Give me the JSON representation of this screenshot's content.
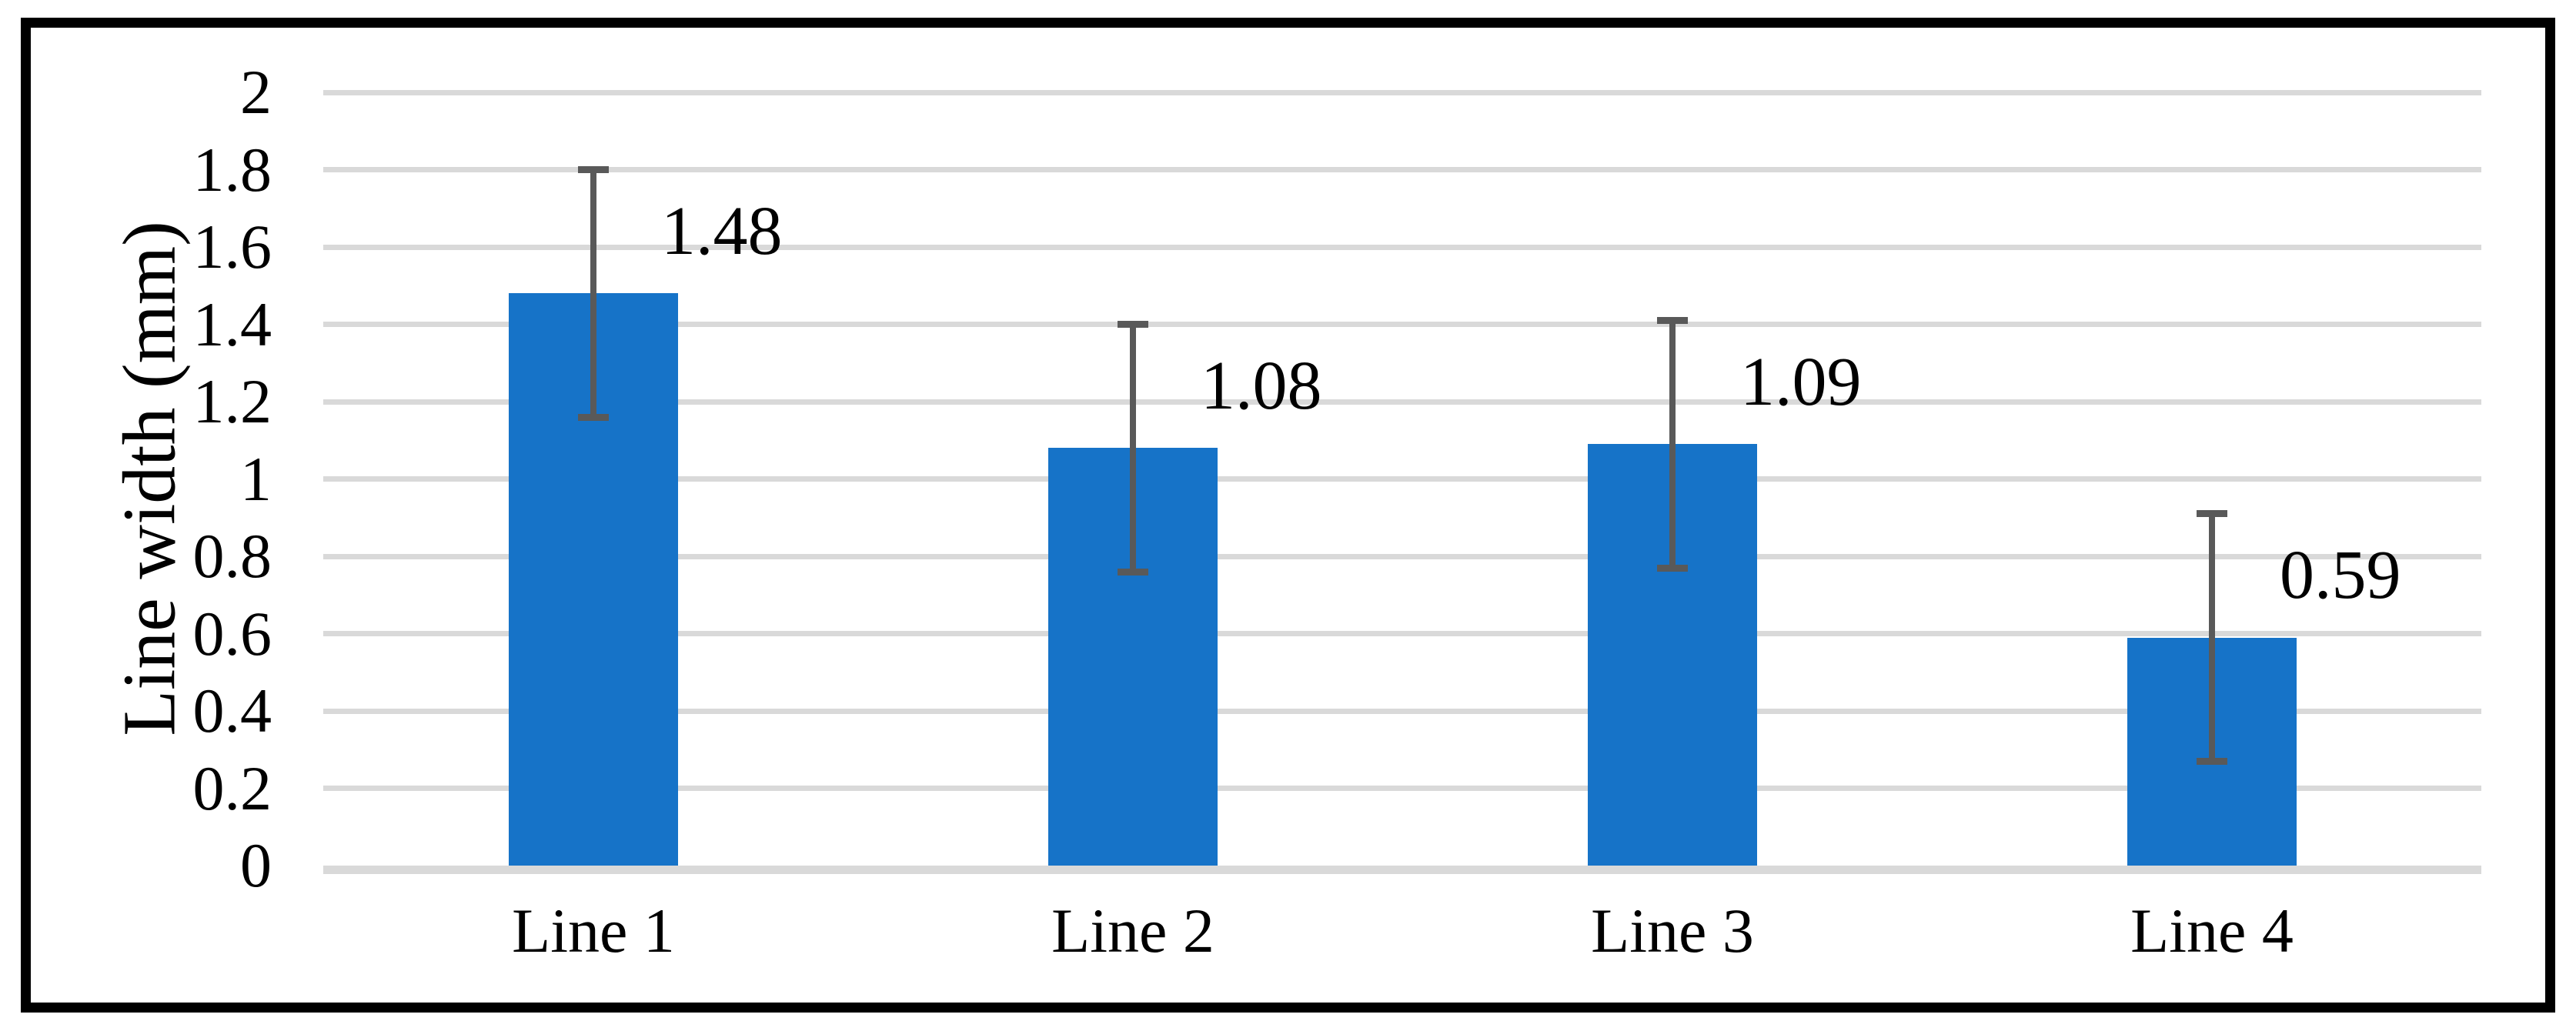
{
  "chart_data": {
    "type": "bar",
    "categories": [
      "Line 1",
      "Line 2",
      "Line 3",
      "Line 4"
    ],
    "values": [
      1.48,
      1.08,
      1.09,
      0.59
    ],
    "data_labels": [
      "1.48",
      "1.08",
      "1.09",
      "0.59"
    ],
    "error_bars": [
      {
        "low": 1.16,
        "high": 1.8
      },
      {
        "low": 0.76,
        "high": 1.4
      },
      {
        "low": 0.77,
        "high": 1.41
      },
      {
        "low": 0.27,
        "high": 0.91
      }
    ],
    "xlabel": "",
    "ylabel": "Line width (mm)",
    "ylim": [
      0,
      2
    ],
    "ytick_labels": [
      "2",
      "1.8",
      "1.6",
      "1.4",
      "1.2",
      "1",
      "0.8",
      "0.6",
      "0.4",
      "0.2",
      "0"
    ],
    "grid": "horizontal",
    "legend": "none"
  },
  "colors": {
    "bar_fill": "#1673C8",
    "error_bar": "#595959",
    "gridline": "#D9D9D9",
    "axis_line": "#D9D9D9",
    "text": "#000000",
    "border": "#000000",
    "background": "#FFFFFF"
  }
}
